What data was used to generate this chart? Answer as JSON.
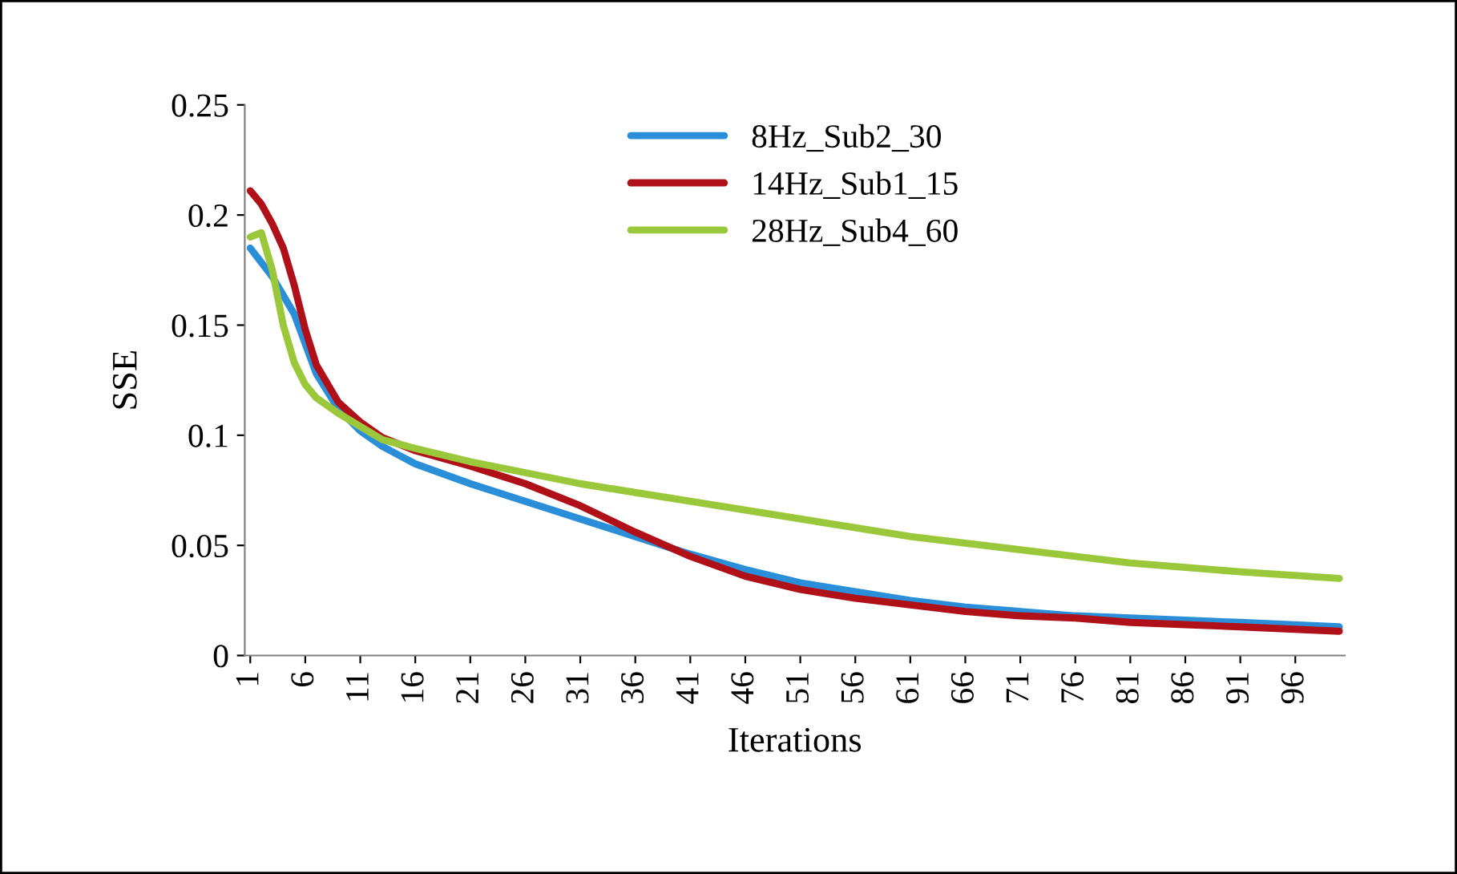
{
  "chart_data": {
    "type": "line",
    "xlabel": "Iterations",
    "ylabel": "SSE",
    "xlim": [
      0.5,
      100.5
    ],
    "xticks": [
      1,
      6,
      11,
      16,
      21,
      26,
      31,
      36,
      41,
      46,
      51,
      56,
      61,
      66,
      71,
      76,
      81,
      86,
      91,
      96
    ],
    "ylim": [
      0,
      0.25
    ],
    "yticks": [
      0,
      {
        "value": 0.05,
        "label": "0.05"
      },
      {
        "value": 0.1,
        "label": "0.1"
      },
      {
        "value": 0.15,
        "label": "0.15"
      },
      {
        "value": 0.2,
        "label": "0.2"
      },
      {
        "value": 0.25,
        "label": "0.25"
      }
    ],
    "grid": false,
    "legend": "top",
    "marker": "none",
    "line_style": "solid",
    "series": [
      {
        "name": "8Hz_Sub2_30",
        "color": "#2a8fd8",
        "x": [
          1,
          3,
          5,
          7,
          9,
          11,
          13,
          16,
          21,
          26,
          31,
          36,
          41,
          46,
          51,
          56,
          61,
          66,
          71,
          76,
          81,
          86,
          91,
          100
        ],
        "values": [
          0.185,
          0.172,
          0.155,
          0.128,
          0.112,
          0.102,
          0.095,
          0.087,
          0.078,
          0.07,
          0.062,
          0.054,
          0.046,
          0.039,
          0.033,
          0.029,
          0.025,
          0.022,
          0.02,
          0.018,
          0.017,
          0.016,
          0.015,
          0.013
        ]
      },
      {
        "name": "14Hz_Sub1_15",
        "color": "#b01018",
        "x": [
          1,
          2,
          3,
          4,
          5,
          6,
          7,
          9,
          11,
          13,
          16,
          21,
          26,
          31,
          36,
          41,
          46,
          51,
          56,
          61,
          66,
          71,
          76,
          81,
          86,
          91,
          100
        ],
        "values": [
          0.211,
          0.205,
          0.196,
          0.185,
          0.168,
          0.148,
          0.132,
          0.115,
          0.106,
          0.099,
          0.093,
          0.086,
          0.078,
          0.068,
          0.056,
          0.045,
          0.036,
          0.03,
          0.026,
          0.023,
          0.02,
          0.018,
          0.017,
          0.015,
          0.014,
          0.013,
          0.011
        ]
      },
      {
        "name": "28Hz_Sub4_60",
        "color": "#9ac83a",
        "x": [
          1,
          2,
          3,
          4,
          5,
          6,
          7,
          9,
          11,
          13,
          16,
          21,
          26,
          31,
          36,
          41,
          46,
          51,
          56,
          61,
          66,
          71,
          76,
          81,
          86,
          91,
          100
        ],
        "values": [
          0.19,
          0.192,
          0.175,
          0.15,
          0.133,
          0.123,
          0.117,
          0.11,
          0.104,
          0.098,
          0.094,
          0.088,
          0.083,
          0.078,
          0.074,
          0.07,
          0.066,
          0.062,
          0.058,
          0.054,
          0.051,
          0.048,
          0.045,
          0.042,
          0.04,
          0.038,
          0.035
        ]
      }
    ]
  }
}
